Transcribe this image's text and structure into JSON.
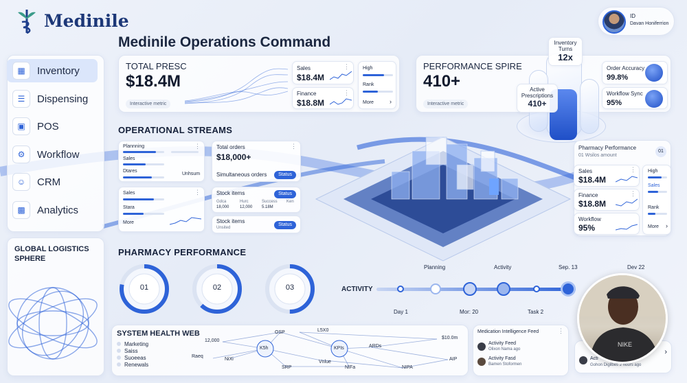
{
  "brand": {
    "name": "Medinile"
  },
  "page_title": "Medinile Operations Command",
  "user": {
    "id_label": "ID",
    "name": "Davan Honiferrion"
  },
  "sidebar": {
    "items": [
      {
        "label": "Inventory",
        "icon": "inventory-icon"
      },
      {
        "label": "Dispensing",
        "icon": "dispensing-icon"
      },
      {
        "label": "POS",
        "icon": "pos-icon"
      },
      {
        "label": "Workflow",
        "icon": "workflow-icon"
      },
      {
        "label": "CRM",
        "icon": "crm-icon"
      },
      {
        "label": "Analytics",
        "icon": "analytics-icon"
      }
    ],
    "globe_title_1": "GLOBAL LOGISTICS",
    "globe_title_2": "SPHERE"
  },
  "total_presc": {
    "title": "TOTAL PRESC",
    "value": "$18.4M",
    "tag": "Interactive metric",
    "sales": {
      "label": "Sales",
      "value": "$18.4M"
    },
    "finance": {
      "label": "Finance",
      "value": "$18.8M"
    },
    "side": {
      "high": "High",
      "rank": "Rank",
      "more": "More"
    }
  },
  "performance_spire": {
    "title": "PERFORMANCE SPIRE",
    "value": "410+",
    "tag": "Interactive metric",
    "inventory_turns": {
      "label_1": "Inventory",
      "label_2": "Turns",
      "value": "12x"
    },
    "active_prescriptions": {
      "label_1": "Active",
      "label_2": "Prescriptions",
      "value": "410+"
    },
    "order_accuracy": {
      "label": "Order Accuracy",
      "value": "99.8%"
    },
    "workflow_sync": {
      "label": "Workflow Sync",
      "value": "95%"
    }
  },
  "operational_streams": {
    "title": "OPERATIONAL STREAMS",
    "card1": {
      "items": [
        "Plannning",
        "Sales",
        "Dtares"
      ],
      "foot": "Unhsum"
    },
    "card2": {
      "label": "Total orders",
      "value": "$18,000+",
      "sub": "Simultaneous orders",
      "status": "Status"
    },
    "card3": {
      "items": [
        "Sales",
        "Stara",
        "More"
      ]
    },
    "card4": {
      "label": "Stock items",
      "status": "Status",
      "cols": [
        {
          "h": "Gdca",
          "v": "18,000"
        },
        {
          "h": "Hurc",
          "v": "12,000"
        },
        {
          "h": "Success",
          "v": "5.18M"
        },
        {
          "h": "Ken",
          "v": ""
        }
      ]
    },
    "card5": {
      "label": "Stock items",
      "sub": "Unsited",
      "status": "Status"
    }
  },
  "pharmacy_perf_card": {
    "title": "Pharmacy Performance",
    "sub": "01 Wsilos amount",
    "badge": "01",
    "sales": {
      "label": "Sales",
      "value": "$18.4M"
    },
    "finance": {
      "label": "Finance",
      "value": "$18.8M"
    },
    "workflow": {
      "label": "Workflow",
      "value": "95%"
    },
    "side": {
      "high": "High",
      "sales": "Sales",
      "rank": "Rank",
      "more": "More"
    }
  },
  "pharmacy_performance": {
    "title": "PHARMACY PERFORMANCE",
    "rings": [
      {
        "label": "01",
        "fraction": 0.78
      },
      {
        "label": "02",
        "fraction": 0.62
      },
      {
        "label": "03",
        "fraction": 0.5
      }
    ]
  },
  "activity": {
    "title": "ACTIVITY",
    "top_labels": [
      "Planning",
      "Activity",
      "Sep. 13",
      "Dev 22"
    ],
    "bottom_labels": [
      "Day 1",
      "Mor: 20",
      "Task 2"
    ]
  },
  "system_health": {
    "title": "SYSTEM HEALTH WEB",
    "legend": [
      "Marketing",
      "Saiss",
      "Suoeeas",
      "Renewals"
    ],
    "nodes": [
      "12,000",
      "OSP",
      "L5X0",
      "K5h",
      "KPIs",
      "ARDs",
      "$10.0m",
      "Raeq",
      "NiXi",
      "Vnlue",
      "SRP",
      "NIFa",
      "NIPA",
      "AIP"
    ]
  },
  "medication_feed": {
    "title": "Medication Intelligence Feed",
    "items": [
      {
        "title": "Activity Feed",
        "meta": "Olixon Nama ago"
      },
      {
        "title": "Activity Fasd",
        "meta": "Bamen Stoformen"
      }
    ],
    "overlay": {
      "title": "Acti",
      "meta": "Gohon Digilbes 2 hours ago"
    }
  },
  "colors": {
    "accent": "#2e63d8",
    "text": "#1b2740",
    "bg": "#eaf0f9"
  }
}
